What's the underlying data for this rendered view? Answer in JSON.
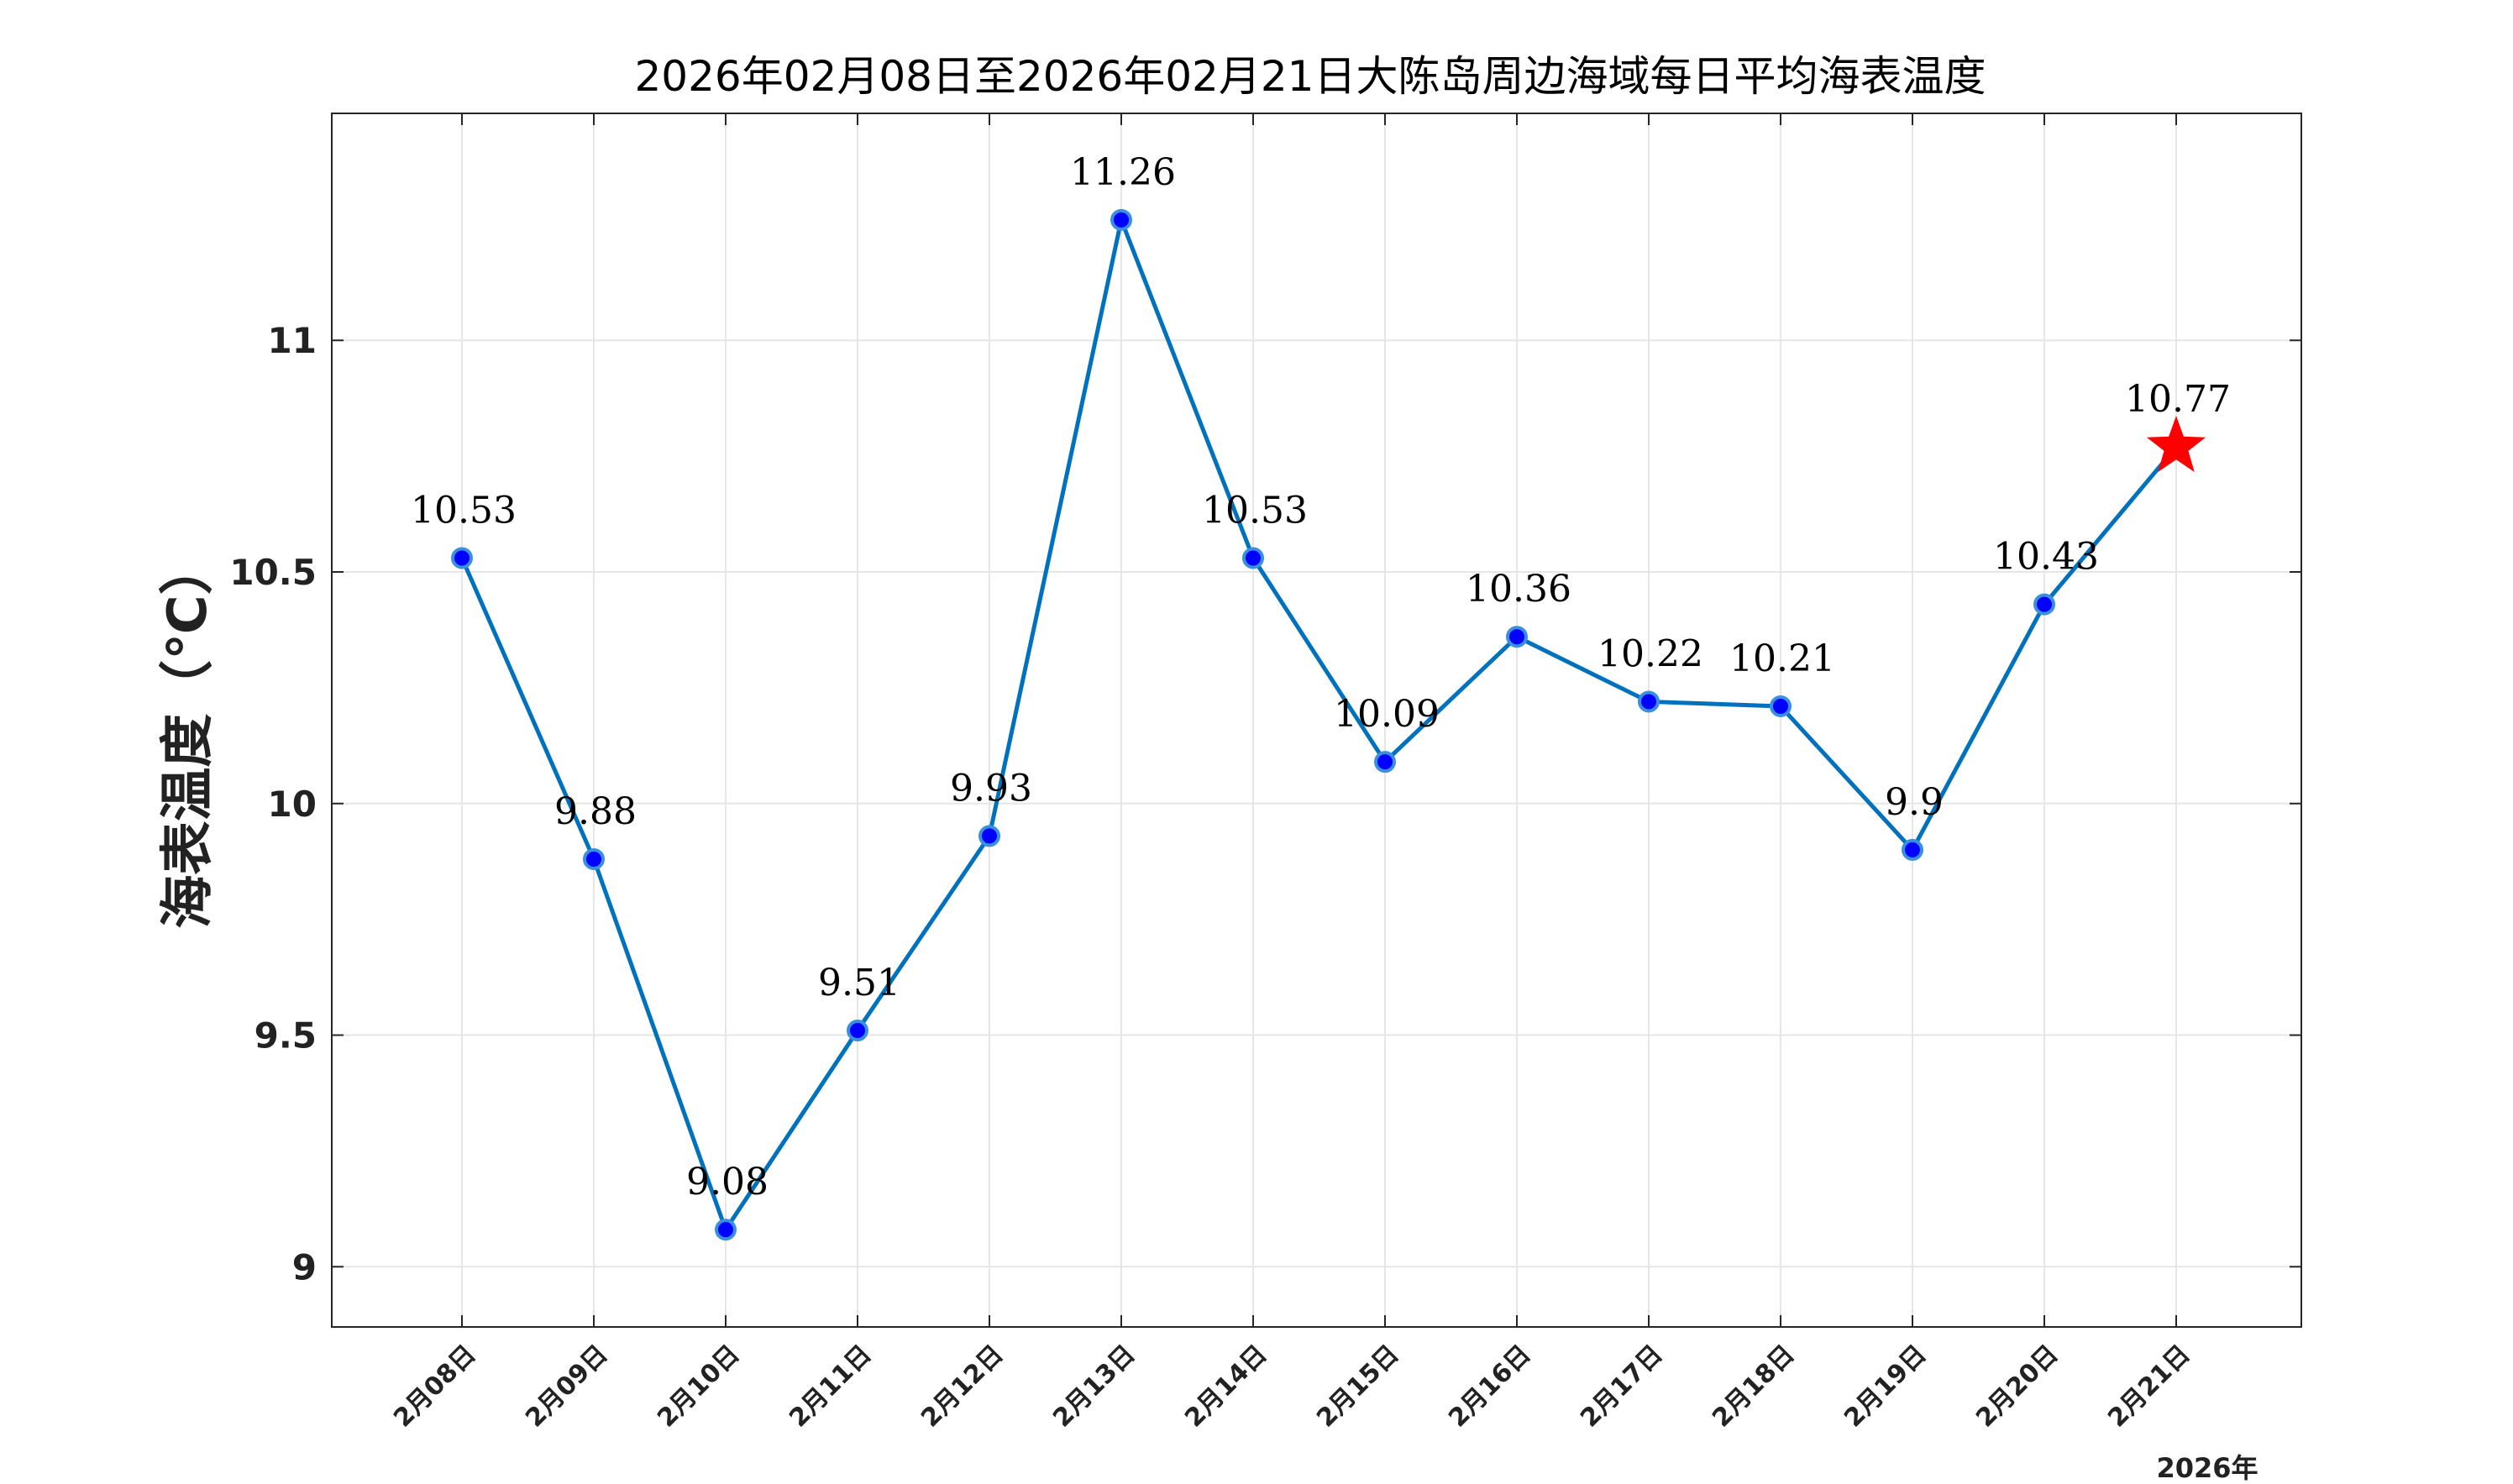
{
  "chart_data": {
    "type": "line",
    "title": "2026年02月08日至2026年02月21日大陈岛周边海域每日平均海表温度",
    "ylabel": "海表温度（℃）",
    "xlabel": "",
    "x_sublabel": "2026年",
    "categories": [
      "2月08日",
      "2月09日",
      "2月10日",
      "2月11日",
      "2月12日",
      "2月13日",
      "2月14日",
      "2月15日",
      "2月16日",
      "2月17日",
      "2月18日",
      "2月19日",
      "2月20日",
      "2月21日"
    ],
    "series": [
      {
        "values": [
          10.53,
          9.88,
          9.08,
          9.51,
          9.93,
          11.26,
          10.53,
          10.09,
          10.36,
          10.22,
          10.21,
          9.9,
          10.43,
          10.77
        ],
        "data_labels": [
          "10.53",
          "9.88",
          "9.08",
          "9.51",
          "9.93",
          "11.26",
          "10.53",
          "10.09",
          "10.36",
          "10.22",
          "10.21",
          "9.9",
          "10.43",
          "10.77"
        ]
      }
    ],
    "yticks": [
      9,
      9.5,
      10,
      10.5,
      11
    ],
    "ytick_labels": [
      "9",
      "9.5",
      "10",
      "10.5",
      "11"
    ],
    "ylim": [
      8.87,
      11.49
    ],
    "grid": true,
    "highlight_last_point": "star",
    "colors": {
      "line": "#0072BD",
      "marker_fill": "#0000FF",
      "marker_edge": "#3A8FE0",
      "star": "#FF0000",
      "grid": "#E6E6E6",
      "axis": "#262626"
    }
  }
}
